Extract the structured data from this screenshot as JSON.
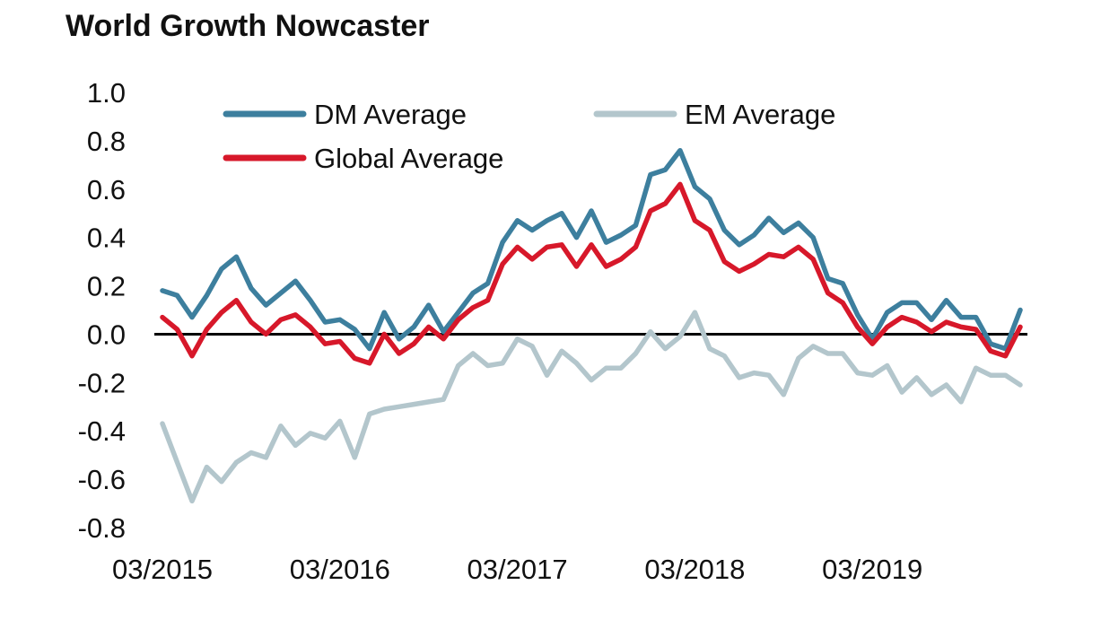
{
  "chart_data": {
    "type": "line",
    "title": "World Growth Nowcaster",
    "xlabel": "",
    "ylabel": "",
    "ylim": [
      -0.8,
      1.0
    ],
    "yticks": [
      "1.0",
      "0.8",
      "0.6",
      "0.4",
      "0.2",
      "0.0",
      "-0.2",
      "-0.4",
      "-0.6",
      "-0.8"
    ],
    "ytick_values": [
      1.0,
      0.8,
      0.6,
      0.4,
      0.2,
      0.0,
      -0.2,
      -0.4,
      -0.6,
      -0.8
    ],
    "xticks": [
      "03/2015",
      "03/2016",
      "03/2017",
      "03/2018",
      "03/2019"
    ],
    "xtick_indices": [
      0,
      12,
      24,
      36,
      48
    ],
    "x_start": "03/2015",
    "x_end": "12/2019",
    "zero_line": true,
    "grid": false,
    "legend_position": "top",
    "series": [
      {
        "name": "DM Average",
        "color": "#3d7f9e",
        "values": [
          0.18,
          0.16,
          0.07,
          0.16,
          0.27,
          0.32,
          0.19,
          0.12,
          0.17,
          0.22,
          0.14,
          0.05,
          0.06,
          0.02,
          -0.06,
          0.09,
          -0.02,
          0.03,
          0.12,
          0.01,
          0.09,
          0.17,
          0.21,
          0.38,
          0.47,
          0.43,
          0.47,
          0.5,
          0.4,
          0.51,
          0.38,
          0.41,
          0.45,
          0.66,
          0.68,
          0.76,
          0.61,
          0.56,
          0.43,
          0.37,
          0.41,
          0.48,
          0.42,
          0.46,
          0.4,
          0.23,
          0.21,
          0.08,
          -0.02,
          0.09,
          0.13,
          0.13,
          0.06,
          0.14,
          0.07,
          0.07,
          -0.04,
          -0.06,
          0.1
        ]
      },
      {
        "name": "EM Average",
        "color": "#b3c6cc",
        "values": [
          -0.37,
          -0.53,
          -0.69,
          -0.55,
          -0.61,
          -0.53,
          -0.49,
          -0.51,
          -0.38,
          -0.46,
          -0.41,
          -0.43,
          -0.36,
          -0.51,
          -0.33,
          -0.31,
          -0.3,
          -0.29,
          -0.28,
          -0.27,
          -0.13,
          -0.08,
          -0.13,
          -0.12,
          -0.02,
          -0.05,
          -0.17,
          -0.07,
          -0.12,
          -0.19,
          -0.14,
          -0.14,
          -0.08,
          0.01,
          -0.06,
          -0.01,
          0.09,
          -0.06,
          -0.09,
          -0.18,
          -0.16,
          -0.17,
          -0.25,
          -0.1,
          -0.05,
          -0.08,
          -0.08,
          -0.16,
          -0.17,
          -0.13,
          -0.24,
          -0.18,
          -0.25,
          -0.21,
          -0.28,
          -0.14,
          -0.17,
          -0.17,
          -0.21
        ]
      },
      {
        "name": "Global Average",
        "color": "#d7182a",
        "values": [
          0.07,
          0.02,
          -0.09,
          0.02,
          0.09,
          0.14,
          0.05,
          0.0,
          0.06,
          0.08,
          0.03,
          -0.04,
          -0.03,
          -0.1,
          -0.12,
          0.0,
          -0.08,
          -0.04,
          0.03,
          -0.02,
          0.06,
          0.11,
          0.14,
          0.29,
          0.36,
          0.31,
          0.36,
          0.37,
          0.28,
          0.37,
          0.28,
          0.31,
          0.36,
          0.51,
          0.54,
          0.62,
          0.47,
          0.43,
          0.3,
          0.26,
          0.29,
          0.33,
          0.32,
          0.36,
          0.31,
          0.17,
          0.13,
          0.03,
          -0.04,
          0.03,
          0.07,
          0.05,
          0.01,
          0.05,
          0.03,
          0.02,
          -0.07,
          -0.09,
          0.03
        ]
      }
    ]
  }
}
